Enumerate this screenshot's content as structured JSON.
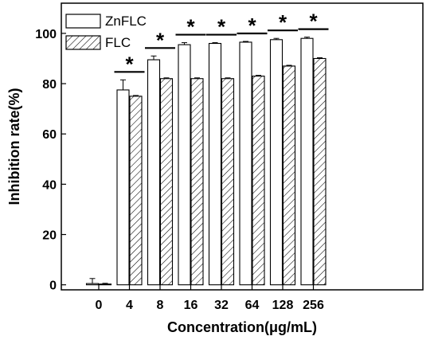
{
  "chart_data": {
    "type": "bar",
    "categories": [
      "0",
      "4",
      "8",
      "16",
      "32",
      "64",
      "128",
      "256"
    ],
    "xlabel": "Concentration(μg/mL)",
    "ylabel": "Inhibition rate(%)",
    "ylim": [
      -2,
      112
    ],
    "yticks": [
      0,
      20,
      40,
      60,
      80,
      100
    ],
    "legend_position": "top-left",
    "series": [
      {
        "name": "ZnFLC",
        "pattern": "open",
        "values": [
          0.5,
          77.5,
          89.5,
          95.5,
          96.0,
          96.5,
          97.5,
          98.0
        ],
        "errors": [
          2.0,
          4.0,
          1.5,
          0.8,
          0.3,
          0.3,
          0.5,
          0.5
        ]
      },
      {
        "name": "FLC",
        "pattern": "hatched",
        "values": [
          0.3,
          75.0,
          82.0,
          82.0,
          82.0,
          83.0,
          87.0,
          90.0
        ],
        "errors": [
          0.3,
          0.3,
          0.3,
          0.3,
          0.3,
          0.3,
          0.3,
          0.3
        ]
      }
    ],
    "significance": {
      "symbol": "*",
      "categories": [
        "4",
        "8",
        "16",
        "32",
        "64",
        "128",
        "256"
      ]
    }
  }
}
